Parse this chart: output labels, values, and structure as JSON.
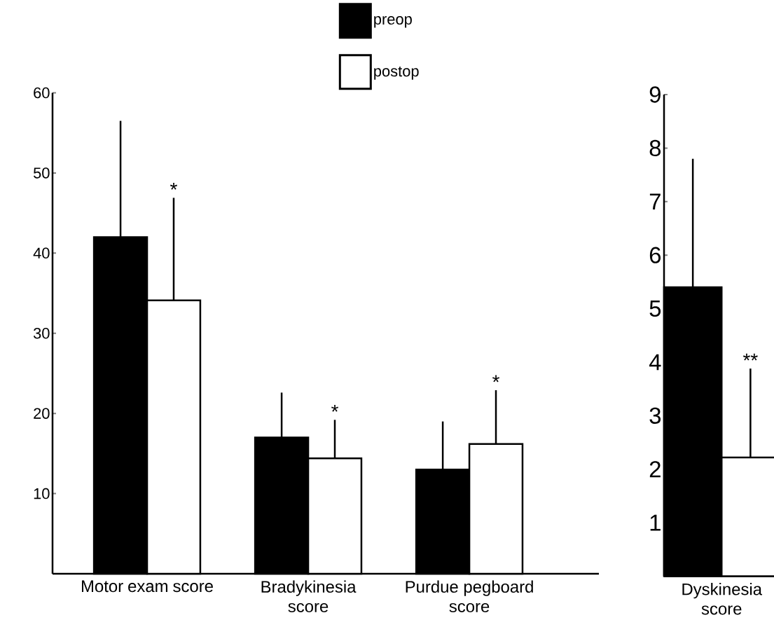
{
  "chart_data": [
    {
      "type": "bar",
      "categories": [
        "Motor exam score",
        "Bradykinesia score",
        "Purdue pegboard score"
      ],
      "series": [
        {
          "name": "preop",
          "color": "#000000",
          "values": [
            42,
            17,
            13
          ],
          "errors": [
            [
              42,
              56.5
            ],
            [
              17,
              22.6
            ],
            [
              13,
              19.0
            ]
          ]
        },
        {
          "name": "postop",
          "color": "#ffffff",
          "values": [
            34.1,
            14.4,
            16.2
          ],
          "errors": [
            [
              34.1,
              46.9
            ],
            [
              14.4,
              19.2
            ],
            [
              16.2,
              22.9
            ]
          ]
        }
      ],
      "ylim": [
        0,
        60
      ],
      "yticks": [
        10,
        20,
        30,
        40,
        50,
        60
      ],
      "legend": "top",
      "annotations": [
        "*",
        "*",
        "*"
      ]
    },
    {
      "type": "bar",
      "categories": [
        "Dyskinesia score"
      ],
      "series": [
        {
          "color": "#000000",
          "values": [
            5.4
          ],
          "errors": [
            [
              5.4,
              7.8
            ]
          ]
        },
        {
          "color": "#ffffff",
          "values": [
            2.22
          ],
          "errors": [
            [
              2.22,
              3.88
            ]
          ]
        }
      ],
      "ylim": [
        0,
        9
      ],
      "yticks": [
        1,
        2,
        3,
        4,
        5,
        6,
        7,
        8,
        9
      ],
      "annotations": [
        "**"
      ]
    }
  ]
}
